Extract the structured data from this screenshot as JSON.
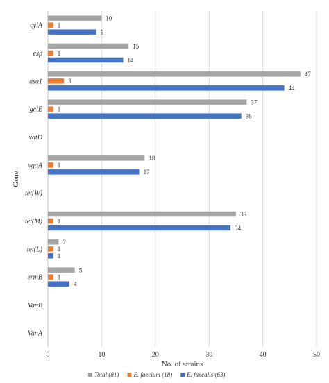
{
  "chart_data": {
    "type": "bar",
    "orientation": "horizontal",
    "title": "",
    "xlabel": "No. of strains",
    "ylabel": "Gene",
    "xlim": [
      0,
      50
    ],
    "x_ticks": [
      0,
      10,
      20,
      30,
      40,
      50
    ],
    "grid": "vertical",
    "legend_position": "bottom",
    "categories": [
      "cylA",
      "esp",
      "asa1",
      "gelE",
      "vatD",
      "vgaA",
      "tet(W)",
      "tet(M)",
      "tet(L)",
      "ermB",
      "VanB",
      "VanA"
    ],
    "series": [
      {
        "name": "Total (81)",
        "color": "#a5a5a5",
        "values": [
          10,
          15,
          47,
          37,
          0,
          18,
          0,
          35,
          2,
          5,
          0,
          0
        ]
      },
      {
        "name": "E. faecium (18)",
        "color": "#ed7d31",
        "values": [
          1,
          1,
          3,
          1,
          0,
          1,
          0,
          1,
          1,
          1,
          0,
          0
        ]
      },
      {
        "name": "E. faecalis (63)",
        "color": "#4472c4",
        "values": [
          9,
          14,
          44,
          36,
          0,
          17,
          0,
          34,
          1,
          4,
          0,
          0
        ]
      }
    ]
  }
}
